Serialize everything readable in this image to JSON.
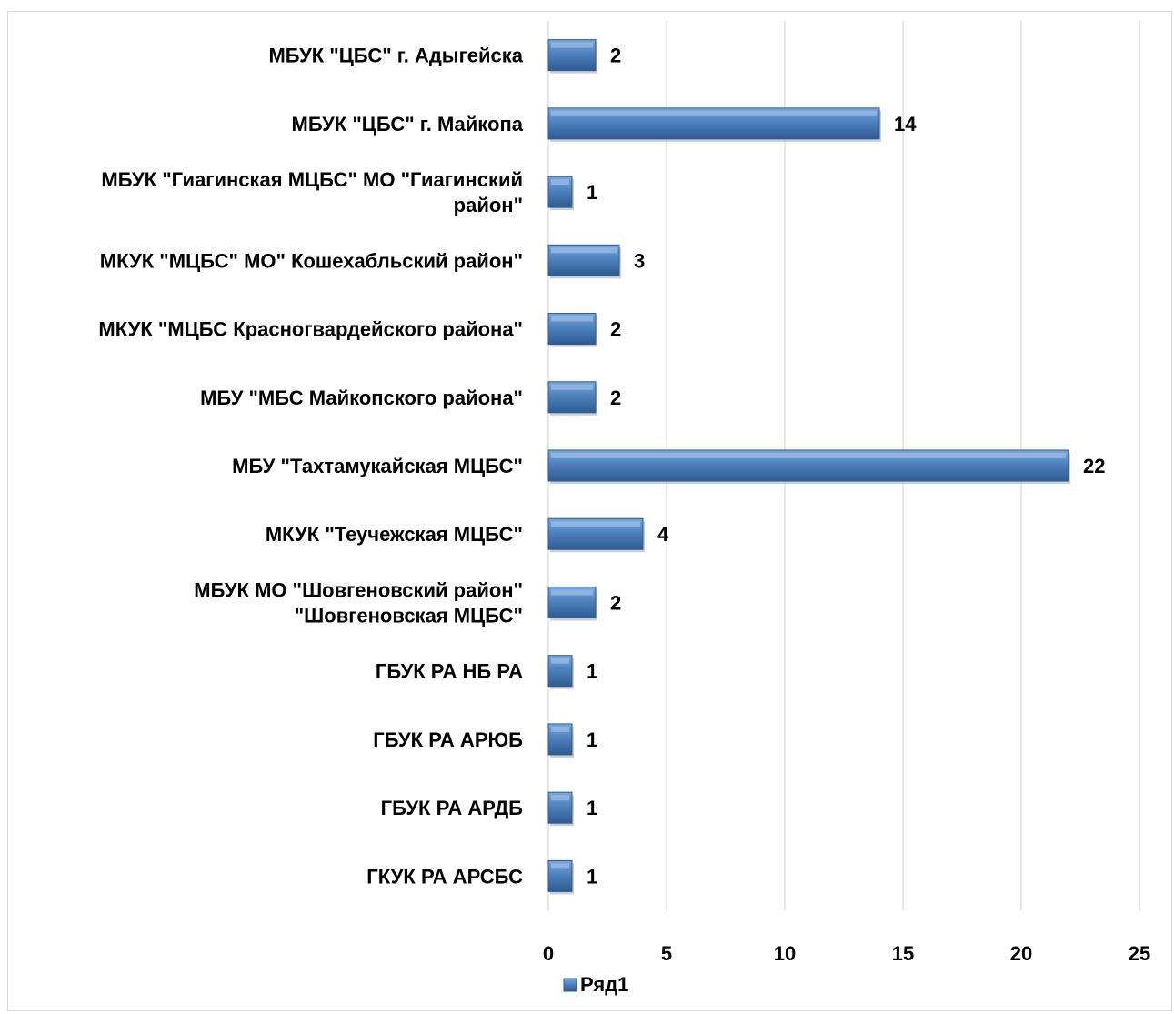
{
  "chart_data": {
    "type": "bar",
    "orientation": "horizontal",
    "title": "",
    "xlabel": "",
    "ylabel": "",
    "categories": [
      [
        "МБУК \"ЦБС\" г. Адыгейска"
      ],
      [
        "МБУК \"ЦБС\" г. Майкопа"
      ],
      [
        "МБУК \"Гиагинская МЦБС\" МО \"Гиагинский",
        "район\""
      ],
      [
        "МКУК \"МЦБС\" МО\" Кошехабльский район\""
      ],
      [
        "МКУК \"МЦБС Красногвардейского района\""
      ],
      [
        "МБУ \"МБС Майкопского района\""
      ],
      [
        "МБУ \"Тахтамукайская МЦБС\""
      ],
      [
        "МКУК \"Теучежская МЦБС\""
      ],
      [
        "МБУК МО \"Шовгеновский район\"",
        "\"Шовгеновская МЦБС\""
      ],
      [
        "ГБУК РА НБ РА"
      ],
      [
        "ГБУК РА АРЮБ"
      ],
      [
        "ГБУК РА АРДБ"
      ],
      [
        "ГКУК РА АРСБС"
      ]
    ],
    "series": [
      {
        "name": "Ряд1",
        "color": "#4f81bd",
        "values": [
          2,
          14,
          1,
          3,
          2,
          2,
          22,
          4,
          2,
          1,
          1,
          1,
          1
        ]
      }
    ],
    "data_labels": [
      "2",
      "14",
      "1",
      "3",
      "2",
      "2",
      "22",
      "4",
      "2",
      "1",
      "1",
      "1",
      "1"
    ],
    "xlim": [
      0,
      25
    ],
    "xticks": [
      0,
      5,
      10,
      15,
      20,
      25
    ],
    "xtick_labels": [
      "0",
      "5",
      "10",
      "15",
      "20",
      "25"
    ],
    "grid": true,
    "legend": {
      "position": "bottom",
      "entries": [
        "Ряд1"
      ]
    }
  }
}
